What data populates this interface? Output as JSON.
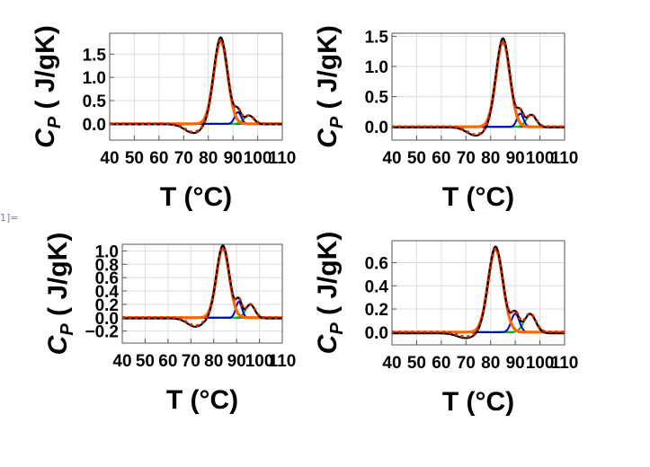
{
  "cell_label": "1]=",
  "colors": {
    "measured": "#000000",
    "fit_total": "#ff6600",
    "fit_dotted": "#d62400",
    "peak_main": "#ff6600",
    "peak_second": "#0000cc",
    "peak_third": "#00bb00",
    "baseline": "#0055aa"
  },
  "chart_data": [
    {
      "type": "line",
      "title": "",
      "xlabel": "T (°C)",
      "ylabel": "C_P ( J/gK)",
      "ylabel_main": "C",
      "ylabel_sub": "P",
      "ylabel_rest": " ( J/gK)",
      "xlim": [
        40,
        110
      ],
      "ylim": [
        -0.35,
        1.95
      ],
      "x_ticks": [
        40,
        50,
        60,
        70,
        80,
        90,
        100,
        110
      ],
      "x_tick_labels": [
        "40",
        "50",
        "60",
        "70",
        "80",
        "90",
        "100",
        "110"
      ],
      "y_ticks": [
        0.0,
        0.5,
        1.0,
        1.5
      ],
      "y_tick_labels": [
        "0.0",
        "0.5",
        "1.0",
        "1.5"
      ],
      "grid": true,
      "peaks": [
        {
          "name": "main",
          "center": 85.0,
          "height": 1.8,
          "width": 2.8
        },
        {
          "name": "second",
          "center": 92.0,
          "height": 0.25,
          "width": 1.3
        },
        {
          "name": "third",
          "center": 96.5,
          "height": 0.18,
          "width": 2.0
        }
      ],
      "dip": {
        "center": 74.0,
        "depth": -0.18,
        "width": 3.5
      }
    },
    {
      "type": "line",
      "title": "",
      "xlabel": "T (°C)",
      "ylabel": "C_P ( J/gK)",
      "ylabel_main": "C",
      "ylabel_sub": "P",
      "ylabel_rest": " ( J/gK)",
      "xlim": [
        40,
        110
      ],
      "ylim": [
        -0.22,
        1.55
      ],
      "x_ticks": [
        40,
        50,
        60,
        70,
        80,
        90,
        100,
        110
      ],
      "x_tick_labels": [
        "40",
        "50",
        "60",
        "70",
        "80",
        "90",
        "100",
        "110"
      ],
      "y_ticks": [
        0.0,
        0.5,
        1.0,
        1.5
      ],
      "y_tick_labels": [
        "0.0",
        "0.5",
        "1.0",
        "1.5"
      ],
      "grid": true,
      "peaks": [
        {
          "name": "main",
          "center": 85.0,
          "height": 1.42,
          "width": 2.8
        },
        {
          "name": "second",
          "center": 92.0,
          "height": 0.22,
          "width": 1.3
        },
        {
          "name": "third",
          "center": 96.5,
          "height": 0.2,
          "width": 2.0
        }
      ],
      "dip": {
        "center": 74.0,
        "depth": -0.13,
        "width": 3.5
      }
    },
    {
      "type": "line",
      "title": "",
      "xlabel": "T (°C)",
      "ylabel": "C_P ( J/gK)",
      "ylabel_main": "C",
      "ylabel_sub": "P",
      "ylabel_rest": " ( J/gK)",
      "xlim": [
        40,
        110
      ],
      "ylim": [
        -0.38,
        1.1
      ],
      "x_ticks": [
        40,
        50,
        60,
        70,
        80,
        90,
        100,
        110
      ],
      "x_tick_labels": [
        "40",
        "50",
        "60",
        "70",
        "80",
        "90",
        "100",
        "110"
      ],
      "y_ticks": [
        -0.2,
        0.0,
        0.2,
        0.4,
        0.6,
        0.8,
        1.0
      ],
      "y_tick_labels": [
        "−0.2",
        "0.0",
        "0.2",
        "0.4",
        "0.6",
        "0.8",
        "1.0"
      ],
      "grid": true,
      "peaks": [
        {
          "name": "main",
          "center": 84.0,
          "height": 1.05,
          "width": 2.8
        },
        {
          "name": "second",
          "center": 91.0,
          "height": 0.24,
          "width": 1.3
        },
        {
          "name": "third",
          "center": 96.0,
          "height": 0.2,
          "width": 2.0
        }
      ],
      "dip": {
        "center": 72.0,
        "depth": -0.12,
        "width": 3.5
      }
    },
    {
      "type": "line",
      "title": "",
      "xlabel": "T (°C)",
      "ylabel": "C_P ( J/gK)",
      "ylabel_main": "C",
      "ylabel_sub": "P",
      "ylabel_rest": " ( J/gK)",
      "xlim": [
        40,
        110
      ],
      "ylim": [
        -0.11,
        0.79
      ],
      "x_ticks": [
        40,
        50,
        60,
        70,
        80,
        90,
        100,
        110
      ],
      "x_tick_labels": [
        "40",
        "50",
        "60",
        "70",
        "80",
        "90",
        "100",
        "110"
      ],
      "y_ticks": [
        0.0,
        0.2,
        0.4,
        0.6
      ],
      "y_tick_labels": [
        "0.0",
        "0.2",
        "0.4",
        "0.6"
      ],
      "grid": true,
      "peaks": [
        {
          "name": "main",
          "center": 82.0,
          "height": 0.72,
          "width": 3.0
        },
        {
          "name": "second",
          "center": 90.0,
          "height": 0.16,
          "width": 1.6
        },
        {
          "name": "third",
          "center": 96.0,
          "height": 0.16,
          "width": 2.3
        }
      ],
      "dip": {
        "center": 70.0,
        "depth": -0.04,
        "width": 3.5
      }
    }
  ]
}
